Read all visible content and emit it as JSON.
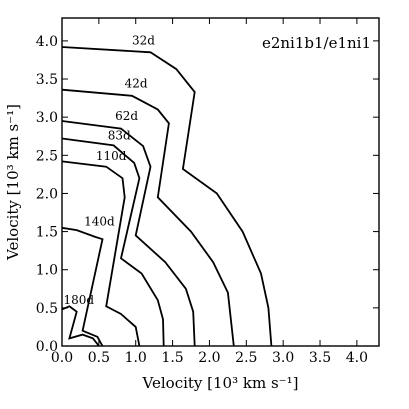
{
  "chart_data": {
    "type": "line",
    "title": "",
    "annotation": "e2ni1b1/e1ni1",
    "xlabel": "Velocity [10³ km s⁻¹]",
    "ylabel": "Velocity [10³ km s⁻¹]",
    "xlim": [
      0,
      4.3
    ],
    "ylim": [
      0,
      4.3
    ],
    "xticks": [
      "0.0",
      "0.5",
      "1.0",
      "1.5",
      "2.0",
      "2.5",
      "3.0",
      "3.5",
      "4.0"
    ],
    "yticks": [
      "0.0",
      "0.5",
      "1.0",
      "1.5",
      "2.0",
      "2.5",
      "3.0",
      "3.5",
      "4.0"
    ],
    "xtick_values": [
      0,
      0.5,
      1.0,
      1.5,
      2.0,
      2.5,
      3.0,
      3.5,
      4.0
    ],
    "ytick_values": [
      0,
      0.5,
      1.0,
      1.5,
      2.0,
      2.5,
      3.0,
      3.5,
      4.0
    ],
    "grid": false,
    "color": "#000000",
    "series": [
      {
        "label": "32d",
        "label_at": [
          0.95,
          3.95
        ],
        "points": [
          [
            0,
            3.92
          ],
          [
            1.2,
            3.85
          ],
          [
            1.55,
            3.63
          ],
          [
            1.8,
            3.33
          ],
          [
            1.64,
            2.32
          ],
          [
            2.1,
            2.0
          ],
          [
            2.45,
            1.5
          ],
          [
            2.7,
            0.95
          ],
          [
            2.8,
            0.5
          ],
          [
            2.84,
            0
          ]
        ]
      },
      {
        "label": "42d",
        "label_at": [
          0.85,
          3.39
        ],
        "points": [
          [
            0,
            3.36
          ],
          [
            0.95,
            3.28
          ],
          [
            1.3,
            3.1
          ],
          [
            1.45,
            2.92
          ],
          [
            1.3,
            1.95
          ],
          [
            1.75,
            1.5
          ],
          [
            2.05,
            1.1
          ],
          [
            2.25,
            0.7
          ],
          [
            2.33,
            0
          ]
        ]
      },
      {
        "label": "62d",
        "label_at": [
          0.72,
          2.96
        ],
        "points": [
          [
            0,
            2.95
          ],
          [
            0.8,
            2.85
          ],
          [
            1.1,
            2.62
          ],
          [
            1.2,
            2.35
          ],
          [
            1.0,
            1.45
          ],
          [
            1.4,
            1.1
          ],
          [
            1.68,
            0.75
          ],
          [
            1.78,
            0.45
          ],
          [
            1.8,
            0
          ]
        ]
      },
      {
        "label": "83d",
        "label_at": [
          0.62,
          2.71
        ],
        "points": [
          [
            0,
            2.72
          ],
          [
            0.7,
            2.63
          ],
          [
            0.98,
            2.4
          ],
          [
            1.05,
            2.2
          ],
          [
            0.8,
            1.15
          ],
          [
            1.08,
            0.95
          ],
          [
            1.3,
            0.6
          ],
          [
            1.37,
            0.35
          ],
          [
            1.38,
            0
          ]
        ]
      },
      {
        "label": "110d",
        "label_at": [
          0.46,
          2.44
        ],
        "points": [
          [
            0,
            2.42
          ],
          [
            0.6,
            2.35
          ],
          [
            0.82,
            2.2
          ],
          [
            0.85,
            1.95
          ],
          [
            0.6,
            0.52
          ],
          [
            0.8,
            0.42
          ],
          [
            1.0,
            0.25
          ],
          [
            1.05,
            0
          ]
        ]
      },
      {
        "label": "140d",
        "label_at": [
          0.3,
          1.58
        ],
        "points": [
          [
            0,
            1.55
          ],
          [
            0.2,
            1.52
          ],
          [
            0.45,
            1.43
          ],
          [
            0.55,
            1.4
          ],
          [
            0.28,
            0.2
          ],
          [
            0.48,
            0.12
          ],
          [
            0.55,
            0
          ]
        ]
      },
      {
        "label": "180d",
        "label_at": [
          0.02,
          0.55
        ],
        "points": [
          [
            0,
            0.48
          ],
          [
            0.1,
            0.52
          ],
          [
            0.2,
            0.45
          ],
          [
            0.1,
            0.1
          ],
          [
            0.28,
            0.15
          ],
          [
            0.42,
            0.1
          ],
          [
            0.5,
            0
          ]
        ]
      }
    ]
  }
}
